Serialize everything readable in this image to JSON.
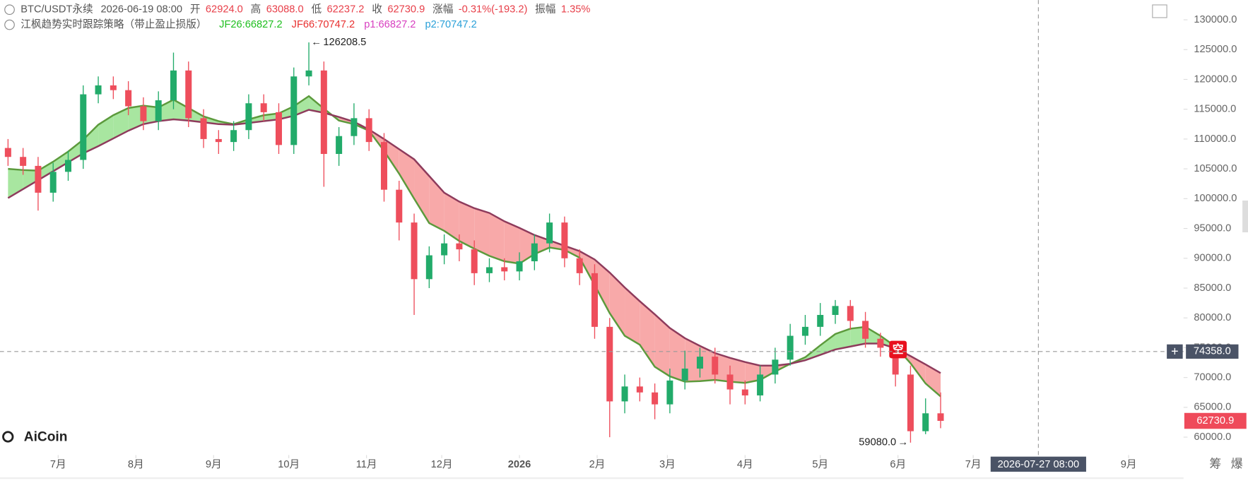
{
  "header": {
    "symbol": "BTC/USDT永续",
    "time": "2026-06-19 08:00",
    "open_label": "开",
    "open": "62924.0",
    "high_label": "高",
    "high": "63088.0",
    "low_label": "低",
    "low": "62237.2",
    "close_label": "收",
    "close": "62730.9",
    "change_label": "涨幅",
    "change": "-0.31%(-193.2)",
    "amplitude_label": "振幅",
    "amplitude": "1.35%",
    "strategy": "江枫趋势实时跟踪策略（带止盈止损版）",
    "jf26": "JF26:66827.2",
    "jf66": "JF66:70747.2",
    "p1": "p1:66827.2",
    "p2": "p2:70747.2"
  },
  "logo": "AiCoin",
  "footer_icons": [
    "筹",
    "爆"
  ],
  "chart_data": {
    "type": "candlestick",
    "xlim": [
      -23.2,
      448.9
    ],
    "xticks": [
      {
        "value": 0,
        "label": "7月"
      },
      {
        "value": 31,
        "label": "8月"
      },
      {
        "value": 62,
        "label": "9月"
      },
      {
        "value": 92,
        "label": "10月"
      },
      {
        "value": 123,
        "label": "11月"
      },
      {
        "value": 153,
        "label": "12月"
      },
      {
        "value": 184,
        "label": "2026"
      },
      {
        "value": 215,
        "label": "2月"
      },
      {
        "value": 243,
        "label": "3月"
      },
      {
        "value": 274,
        "label": "4月"
      },
      {
        "value": 304,
        "label": "5月"
      },
      {
        "value": 335,
        "label": "6月"
      },
      {
        "value": 365,
        "label": "7月"
      },
      {
        "value": 427,
        "label": "9月"
      }
    ],
    "ylim": [
      57000,
      133300
    ],
    "yticks": [
      {
        "value": 60000,
        "label": "60000.0"
      },
      {
        "value": 65000,
        "label": "65000.0"
      },
      {
        "value": 70000,
        "label": "70000.0"
      },
      {
        "value": 75000,
        "label": "75000.0"
      },
      {
        "value": 80000,
        "label": "80000.0"
      },
      {
        "value": 85000,
        "label": "85000.0"
      },
      {
        "value": 90000,
        "label": "90000.0"
      },
      {
        "value": 95000,
        "label": "95000.0"
      },
      {
        "value": 100000,
        "label": "100000.0"
      },
      {
        "value": 105000,
        "label": "105000.0"
      },
      {
        "value": 110000,
        "label": "110000.0"
      },
      {
        "value": 115000,
        "label": "115000.0"
      },
      {
        "value": 120000,
        "label": "120000.0"
      },
      {
        "value": 125000,
        "label": "125000.0"
      },
      {
        "value": 130000,
        "label": "130000.0"
      }
    ],
    "grid": false,
    "up_color": "#22ab6a",
    "down_color": "#ee4e5c",
    "candles": {
      "x": [
        -20,
        -14,
        -8,
        -2,
        4,
        10,
        16,
        22,
        28,
        34,
        40,
        46,
        52,
        58,
        64,
        70,
        76,
        82,
        88,
        94,
        100,
        106,
        112,
        118,
        124,
        130,
        136,
        142,
        148,
        154,
        160,
        166,
        172,
        178,
        184,
        190,
        196,
        202,
        208,
        214,
        220,
        226,
        232,
        238,
        244,
        250,
        256,
        262,
        268,
        274,
        280,
        286,
        292,
        298,
        304,
        310,
        316,
        322,
        328,
        334,
        340,
        346,
        352
      ],
      "open": [
        108500,
        107000,
        105500,
        101000,
        104500,
        106500,
        117500,
        119000,
        118200,
        115500,
        113000,
        116500,
        121500,
        113500,
        110000,
        109500,
        111500,
        116000,
        114500,
        109000,
        120500,
        121500,
        107500,
        110500,
        113500,
        109500,
        101500,
        96000,
        86500,
        90500,
        92500,
        91500,
        87500,
        88500,
        87800,
        89500,
        92500,
        96000,
        90000,
        87500,
        78500,
        66000,
        68500,
        67500,
        65500,
        69500,
        71500,
        73500,
        70500,
        68000,
        67000,
        70500,
        73000,
        77000,
        78500,
        80500,
        82000,
        79500,
        76500,
        75000,
        70500,
        61000,
        64000
      ],
      "high": [
        110000,
        108500,
        107000,
        106000,
        108000,
        119000,
        120500,
        120500,
        119700,
        117000,
        118000,
        124500,
        123000,
        115000,
        111500,
        113000,
        117500,
        117500,
        116000,
        122000,
        126208.5,
        123000,
        112000,
        116000,
        115000,
        111000,
        103000,
        97500,
        92000,
        94000,
        94000,
        93000,
        90000,
        90000,
        91000,
        94000,
        97500,
        97000,
        91500,
        89000,
        80000,
        70500,
        70000,
        69000,
        71500,
        74500,
        75000,
        75000,
        72000,
        69500,
        72000,
        75000,
        79000,
        80500,
        82500,
        83000,
        83000,
        81000,
        77500,
        76000,
        72000,
        66500,
        67500
      ],
      "low": [
        105500,
        104000,
        98000,
        99500,
        103000,
        105000,
        116000,
        116700,
        114000,
        111500,
        111500,
        115000,
        112000,
        108500,
        107500,
        108000,
        110000,
        113000,
        107500,
        107500,
        119000,
        102000,
        105500,
        109000,
        108000,
        99500,
        93000,
        80500,
        85000,
        89000,
        89500,
        85500,
        86000,
        86300,
        86300,
        88000,
        91000,
        88500,
        85500,
        76500,
        60000,
        64000,
        66000,
        63000,
        64000,
        68000,
        70000,
        69000,
        65500,
        65500,
        66000,
        69000,
        72000,
        75500,
        77000,
        79000,
        78000,
        75000,
        73500,
        68500,
        59080,
        60500,
        61500
      ],
      "close": [
        107000,
        105500,
        101000,
        104500,
        106500,
        117500,
        119000,
        118200,
        115500,
        113000,
        116500,
        121500,
        113500,
        110000,
        109500,
        111500,
        116000,
        114500,
        109000,
        120500,
        121500,
        107500,
        110500,
        113500,
        109500,
        101500,
        96000,
        86500,
        90500,
        92500,
        91500,
        87500,
        88500,
        87800,
        89500,
        92500,
        96000,
        90000,
        87500,
        78500,
        66000,
        68500,
        67500,
        65500,
        69500,
        71500,
        73500,
        70500,
        68000,
        67000,
        70500,
        73000,
        77000,
        78500,
        80500,
        82000,
        79500,
        76500,
        75000,
        70500,
        61000,
        64000,
        62730.9
      ]
    },
    "series": [
      {
        "color": "#5c9a3c",
        "values": [
          105000,
          104800,
          104700,
          106200,
          107900,
          109900,
          112400,
          114000,
          115200,
          115600,
          115300,
          116600,
          115200,
          113800,
          113000,
          112500,
          113300,
          114000,
          114300,
          115500,
          117200,
          115100,
          113100,
          112500,
          111400,
          108000,
          104200,
          100000,
          95900,
          94600,
          92900,
          91600,
          90400,
          89500,
          89100,
          90700,
          91800,
          91400,
          90100,
          85500,
          80800,
          77000,
          75500,
          71800,
          70200,
          69300,
          69400,
          69600,
          69300,
          69100,
          69600,
          71000,
          72300,
          73400,
          75400,
          77300,
          78200,
          78500,
          77000,
          75200,
          72400,
          69000,
          66827.2
        ]
      },
      {
        "color": "#8e3b5c",
        "values": [
          100100,
          101600,
          103100,
          104600,
          106100,
          107600,
          108800,
          110100,
          111400,
          112500,
          113000,
          113300,
          113100,
          112800,
          112500,
          112400,
          112700,
          113000,
          113300,
          113900,
          114900,
          114400,
          113700,
          112900,
          111600,
          110000,
          108300,
          106600,
          103800,
          101000,
          99500,
          98400,
          97600,
          96200,
          95100,
          93900,
          93000,
          92100,
          91200,
          89800,
          87600,
          85100,
          82800,
          80600,
          78300,
          76600,
          75300,
          74100,
          73300,
          72600,
          72000,
          72000,
          72300,
          72900,
          73800,
          74700,
          75200,
          75700,
          75700,
          74900,
          73600,
          72200,
          70747.2
        ]
      }
    ],
    "fill_colors": {
      "above": "#a8e6a0",
      "below": "#f8a9a9"
    },
    "annotations": [
      {
        "label": "126208.5",
        "value": 126208.5,
        "x": 100
      },
      {
        "label": "59080.0",
        "value": 59080,
        "x": 340
      }
    ],
    "signal": {
      "label": "空",
      "x": 335,
      "y": 74700
    },
    "crosshair": {
      "price": {
        "value": 74358,
        "label": "74358.0"
      },
      "time": "2026-07-27 08:00",
      "x": 391
    }
  }
}
